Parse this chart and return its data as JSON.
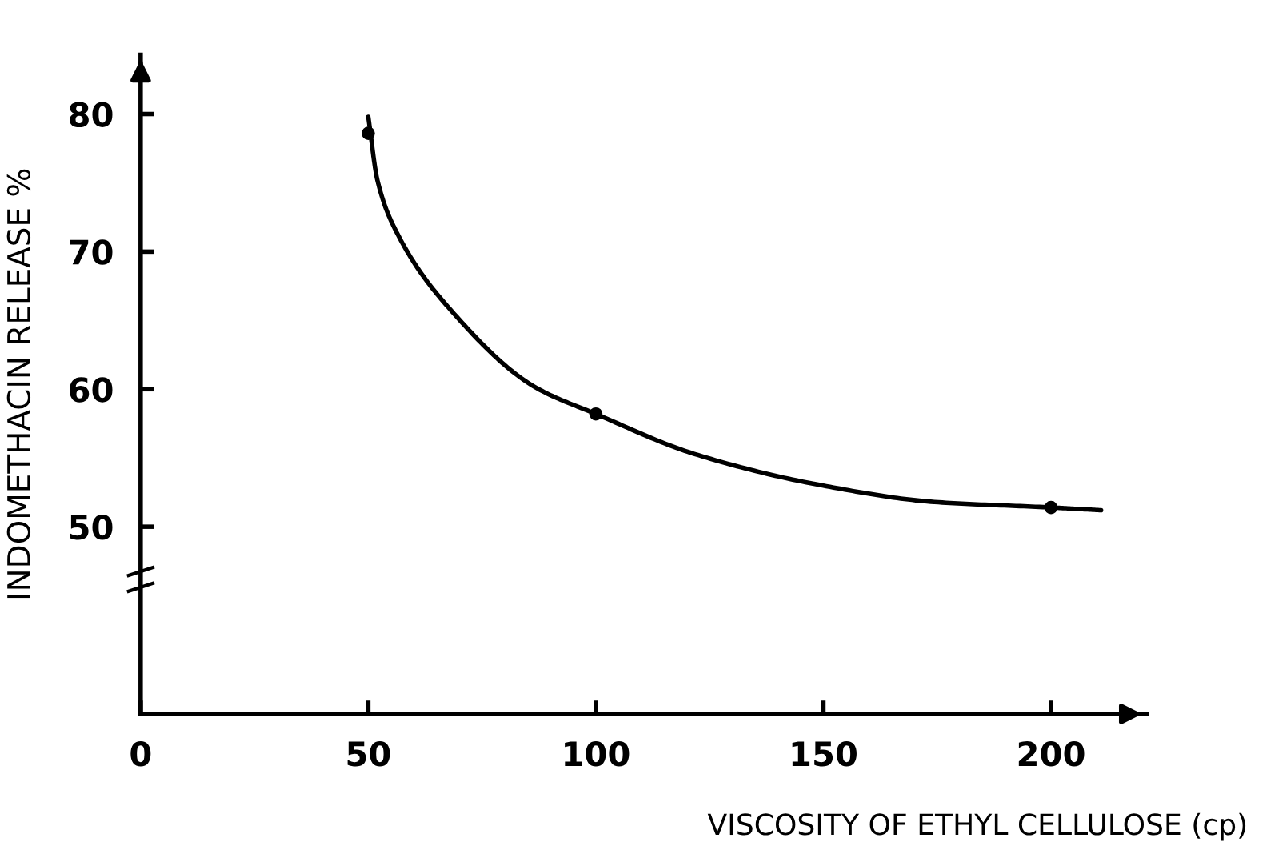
{
  "chart_data": {
    "type": "line",
    "xlabel": "VISCOSITY OF ETHYL CELLULOSE (cp)",
    "ylabel": "INDOMETHACIN RELEASE %",
    "series": [
      {
        "color": "#000000",
        "marker": "none",
        "x": [
          50,
          52,
          56.4,
          68.8,
          86.4,
          100,
          121.6,
          149.8,
          174.4,
          200,
          211
        ],
        "values": [
          79.8,
          75.2,
          71.3,
          65.5,
          60.2,
          58.2,
          55.3,
          53.0,
          51.8,
          51.4,
          51.2
        ]
      },
      {
        "type": "scatter",
        "marker": "circle",
        "color": "#000000",
        "x": [
          50,
          100,
          200
        ],
        "values": [
          78.6,
          58.2,
          51.4
        ]
      }
    ],
    "xlim": [
      0,
      221
    ],
    "ylim": [
      36.4,
      84.3
    ],
    "xticks": [
      0,
      50,
      100,
      150,
      200
    ],
    "yticks": [
      50,
      60,
      70,
      80
    ],
    "grid": false,
    "line_style": "solid"
  }
}
